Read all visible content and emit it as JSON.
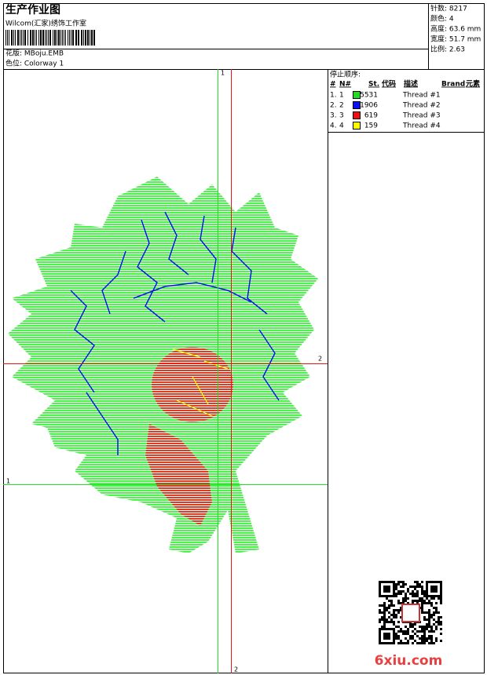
{
  "header": {
    "title": "生产作业图",
    "company": "Wilcom(汇家)绣饰工作室",
    "design": "花版: MBoju.EMB",
    "colorway": "色位: Colorway 1",
    "stats": [
      "针数: 8217",
      "颜色: 4",
      "高度: 63.6 mm",
      "宽度: 51.7 mm",
      "比例: 2.63"
    ]
  },
  "stop_sequence": {
    "title": "停止顺序:",
    "columns": [
      "#",
      "N#",
      "St.",
      "代码",
      "描述",
      "Brand",
      "元素"
    ],
    "rows": [
      {
        "index": "1.",
        "needle": "1",
        "color": "#22dd22",
        "stitches": "5531",
        "description": "Thread #1"
      },
      {
        "index": "2.",
        "needle": "2",
        "color": "#1010ee",
        "stitches": "1906",
        "description": "Thread #2"
      },
      {
        "index": "3.",
        "needle": "3",
        "color": "#ee1111",
        "stitches": "619",
        "description": "Thread #3"
      },
      {
        "index": "4.",
        "needle": "4",
        "color": "#ffff00",
        "stitches": "159",
        "description": "Thread #4"
      }
    ]
  },
  "markers": {
    "top": "1",
    "right": "2",
    "left": "1",
    "bottom": "2"
  },
  "watermark": "6xiu.com"
}
